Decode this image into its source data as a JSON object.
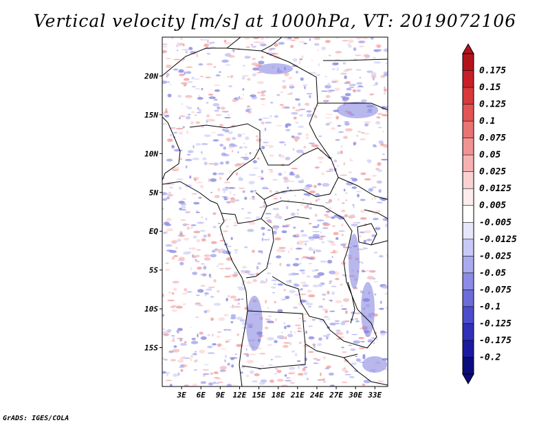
{
  "title": "Vertical velocity [m/s] at 1000hPa, VT: 2019072106",
  "footer": "GrADS: IGES/COLA",
  "map": {
    "lat_range": [
      -20,
      25
    ],
    "lon_range": [
      0,
      35
    ],
    "lat_ticks": [
      "20N",
      "15N",
      "10N",
      "5N",
      "EQ",
      "5S",
      "10S",
      "15S"
    ],
    "lon_ticks": [
      "3E",
      "6E",
      "9E",
      "12E",
      "15E",
      "18E",
      "21E",
      "24E",
      "27E",
      "30E",
      "33E"
    ]
  },
  "colorbar": {
    "labels": [
      "0.175",
      "0.15",
      "0.125",
      "0.1",
      "0.075",
      "0.05",
      "0.025",
      "0.0125",
      "0.005",
      "-0.005",
      "-0.0125",
      "-0.025",
      "-0.05",
      "-0.075",
      "-0.1",
      "-0.125",
      "-0.175",
      "-0.2"
    ],
    "colors": [
      "#b3141b",
      "#c82029",
      "#d63a3a",
      "#e25555",
      "#ea7373",
      "#f29393",
      "#f6b2b2",
      "#fad2d2",
      "#fdecec",
      "#ffffff",
      "#e6e6fb",
      "#c9c9f5",
      "#aaaaef",
      "#8c8ce6",
      "#6d6dda",
      "#4d4dcc",
      "#3030b8",
      "#1a1aa0",
      "#0b0b7d"
    ]
  }
}
